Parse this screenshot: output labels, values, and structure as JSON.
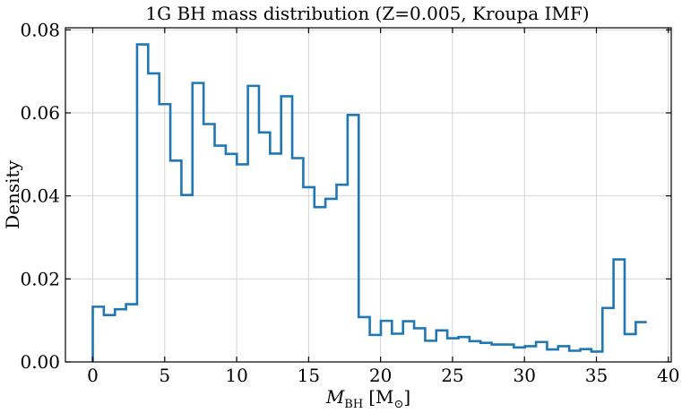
{
  "chart_data": {
    "type": "histogram-step",
    "title": "1G BH mass distribution (Z=0.005, Kroupa IMF)",
    "xlabel": {
      "main": "M",
      "sub": "BH",
      "unit": "[M",
      "unit_sub": "⊙",
      "unit_close": "]"
    },
    "ylabel": "Density",
    "xlim": [
      -1.9,
      40.2
    ],
    "ylim": [
      0,
      0.0805
    ],
    "xticks": [
      0,
      5,
      10,
      15,
      20,
      25,
      30,
      35,
      40
    ],
    "xtick_labels": [
      "0",
      "5",
      "10",
      "15",
      "20",
      "25",
      "30",
      "35",
      "40"
    ],
    "yticks": [
      0,
      0.02,
      0.04,
      0.06,
      0.08
    ],
    "ytick_labels": [
      "0.00",
      "0.02",
      "0.04",
      "0.06",
      "0.08"
    ],
    "grid": true,
    "series": [
      {
        "color": "#1f77b4",
        "bin_edges": [
          0,
          0.77,
          1.54,
          2.31,
          3.08,
          3.85,
          4.62,
          5.39,
          6.16,
          6.93,
          7.7,
          8.47,
          9.24,
          10.01,
          10.78,
          11.55,
          12.32,
          13.09,
          13.86,
          14.63,
          15.4,
          16.17,
          16.94,
          17.71,
          18.48,
          19.25,
          20.02,
          20.79,
          21.56,
          22.33,
          23.1,
          23.87,
          24.64,
          25.41,
          26.18,
          26.95,
          27.72,
          28.49,
          29.26,
          30.03,
          30.8,
          31.57,
          32.34,
          33.11,
          33.88,
          34.65,
          35.42,
          36.19,
          36.96,
          37.73,
          38.5
        ],
        "density": [
          0.0133,
          0.0113,
          0.0127,
          0.0139,
          0.0765,
          0.0695,
          0.0621,
          0.0485,
          0.0402,
          0.0672,
          0.0573,
          0.0521,
          0.0501,
          0.0476,
          0.0665,
          0.0553,
          0.0502,
          0.064,
          0.0491,
          0.0421,
          0.0373,
          0.0393,
          0.0427,
          0.0595,
          0.0108,
          0.0065,
          0.0099,
          0.0068,
          0.0098,
          0.0081,
          0.0051,
          0.0076,
          0.0057,
          0.006,
          0.005,
          0.0046,
          0.0042,
          0.0042,
          0.0035,
          0.0038,
          0.0048,
          0.003,
          0.0038,
          0.0027,
          0.0031,
          0.0025,
          0.013,
          0.0247,
          0.0067,
          0.0096
        ]
      }
    ]
  }
}
